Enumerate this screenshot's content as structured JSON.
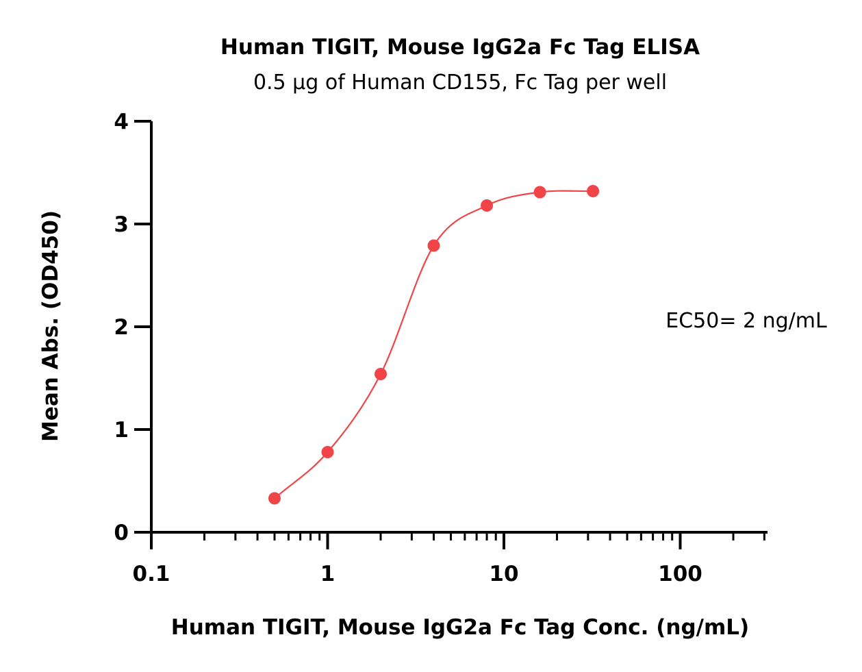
{
  "chart_data": {
    "type": "scatter",
    "title": "Human TIGIT, Mouse IgG2a Fc Tag ELISA",
    "subtitle": "0.5 µg of Human CD155, Fc Tag per well",
    "xlabel": "Human TIGIT, Mouse IgG2a Fc Tag Conc. (ng/mL)",
    "ylabel": "Mean Abs. (OD450)",
    "x_scale": "log",
    "xlim": [
      0.1,
      300
    ],
    "ylim": [
      0,
      4
    ],
    "x_ticks": [
      0.1,
      1,
      10,
      100
    ],
    "x_tick_labels": [
      "0.1",
      "1",
      "10",
      "100"
    ],
    "y_ticks": [
      0,
      1,
      2,
      3,
      4
    ],
    "y_tick_labels": [
      "0",
      "1",
      "2",
      "3",
      "4"
    ],
    "grid": false,
    "color": "#f04448",
    "series": [
      {
        "x": [
          0.5,
          1,
          2,
          4,
          8,
          16,
          32
        ],
        "y": [
          0.33,
          0.78,
          1.54,
          2.79,
          3.18,
          3.31,
          3.32
        ]
      }
    ],
    "annotation": "EC50= 2 ng/mL"
  }
}
